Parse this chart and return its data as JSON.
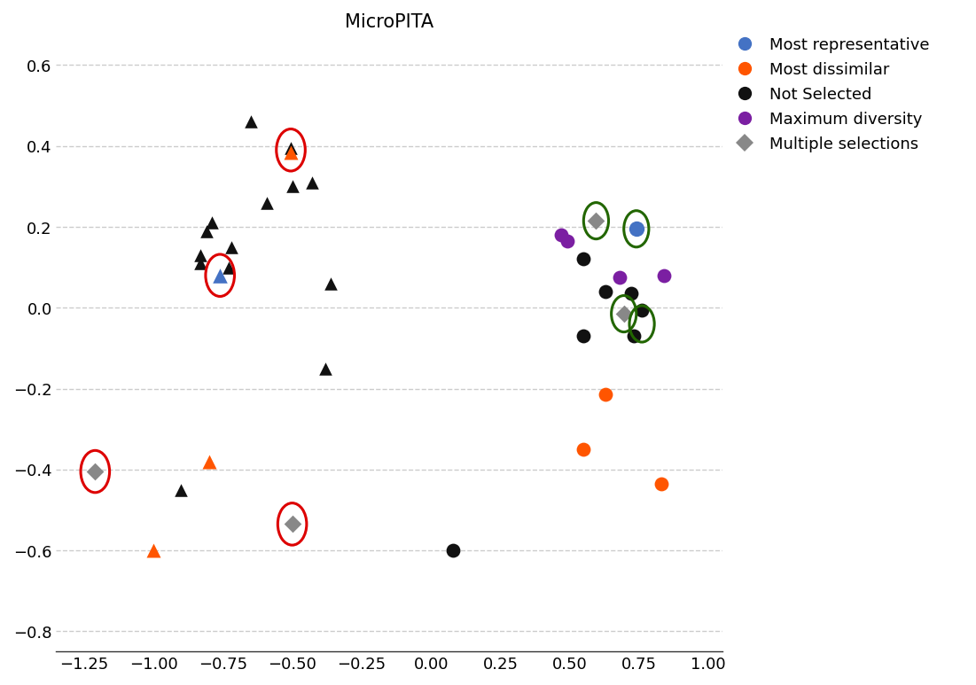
{
  "title": "MicroPITA",
  "xlim": [
    -1.35,
    1.05
  ],
  "ylim": [
    -0.85,
    0.67
  ],
  "xticks": [
    -1.25,
    -1.0,
    -0.75,
    -0.5,
    -0.25,
    0.0,
    0.25,
    0.5,
    0.75,
    1.0
  ],
  "yticks": [
    -0.8,
    -0.6,
    -0.4,
    -0.2,
    0.0,
    0.2,
    0.4,
    0.6
  ],
  "background_color": "#ffffff",
  "grid_color": "#cccccc",
  "triangles_black": [
    [
      -0.79,
      0.21
    ],
    [
      -0.81,
      0.19
    ],
    [
      -0.83,
      0.11
    ],
    [
      -0.83,
      0.13
    ],
    [
      -0.72,
      0.15
    ],
    [
      -0.73,
      0.1
    ],
    [
      -0.65,
      0.46
    ],
    [
      -0.59,
      0.26
    ],
    [
      -0.5,
      0.3
    ],
    [
      -0.43,
      0.31
    ],
    [
      -0.36,
      0.06
    ],
    [
      -0.38,
      -0.15
    ],
    [
      -0.9,
      -0.45
    ]
  ],
  "triangle_blue": [
    -0.76,
    0.08
  ],
  "triangle_black_040": [
    -0.505,
    0.395
  ],
  "triangle_orange_040": [
    -0.505,
    0.385
  ],
  "triangles_orange": [
    [
      -1.0,
      -0.6
    ],
    [
      -0.8,
      -0.38
    ]
  ],
  "circles_black": [
    [
      0.55,
      0.12
    ],
    [
      0.63,
      0.04
    ],
    [
      0.72,
      0.035
    ],
    [
      0.55,
      -0.07
    ],
    [
      0.76,
      -0.005
    ],
    [
      0.73,
      -0.07
    ],
    [
      0.08,
      -0.6
    ]
  ],
  "circles_orange": [
    [
      0.63,
      -0.215
    ],
    [
      0.55,
      -0.35
    ],
    [
      0.83,
      -0.435
    ]
  ],
  "circles_blue": [
    [
      0.74,
      0.195
    ]
  ],
  "circles_purple": [
    [
      0.47,
      0.18
    ],
    [
      0.49,
      0.165
    ],
    [
      0.68,
      0.075
    ],
    [
      0.84,
      0.08
    ]
  ],
  "diamonds_gray": [
    [
      0.595,
      0.215
    ],
    [
      0.695,
      -0.015
    ],
    [
      -0.5,
      -0.535
    ],
    [
      -1.21,
      -0.405
    ]
  ],
  "circle_blue_color": "#4472C4",
  "circle_orange_color": "#FF5500",
  "circle_black_color": "#111111",
  "circle_purple_color": "#7B1FA2",
  "diamond_gray_color": "#888888",
  "red_circle_color": "#DD0000",
  "green_circle_color": "#226600",
  "red_circled_points": [
    [
      -0.76,
      0.08
    ],
    [
      -0.505,
      0.39
    ],
    [
      -1.21,
      -0.405
    ],
    [
      -0.5,
      -0.535
    ]
  ],
  "green_circled_points": [
    [
      0.595,
      0.215
    ],
    [
      0.74,
      0.195
    ],
    [
      0.695,
      -0.015
    ],
    [
      0.76,
      -0.04
    ]
  ],
  "legend_entries": [
    {
      "label": "Most representative",
      "color": "#4472C4",
      "marker": "o"
    },
    {
      "label": "Most dissimilar",
      "color": "#FF5500",
      "marker": "o"
    },
    {
      "label": "Not Selected",
      "color": "#111111",
      "marker": "o"
    },
    {
      "label": "Maximum diversity",
      "color": "#7B1FA2",
      "marker": "o"
    },
    {
      "label": "Multiple selections",
      "color": "#888888",
      "marker": "D"
    }
  ],
  "marker_size_circle": 130,
  "marker_size_triangle": 110,
  "marker_size_diamond": 100,
  "title_fontsize": 15,
  "tick_fontsize": 13,
  "legend_fontsize": 13
}
